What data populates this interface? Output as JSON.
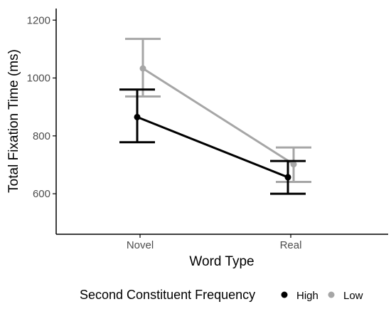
{
  "chart_data": {
    "type": "line",
    "title": "",
    "xlabel": "Word Type",
    "ylabel": "Total Fixation Time (ms)",
    "categories": [
      "Novel",
      "Real"
    ],
    "ylim": [
      460,
      1240
    ],
    "yticks": [
      600,
      800,
      1000,
      1200
    ],
    "grid": false,
    "legend": {
      "title": "Second Constituent Frequency",
      "placement": "bottom",
      "entries": [
        "High",
        "Low"
      ]
    },
    "series": [
      {
        "name": "High",
        "color": "#000000",
        "values": [
          865,
          657
        ],
        "error_low": [
          778,
          600
        ],
        "error_high": [
          960,
          713
        ]
      },
      {
        "name": "Low",
        "color": "#a6a6a6",
        "values": [
          1033,
          702
        ],
        "error_low": [
          936,
          641
        ],
        "error_high": [
          1135,
          760
        ]
      }
    ]
  }
}
